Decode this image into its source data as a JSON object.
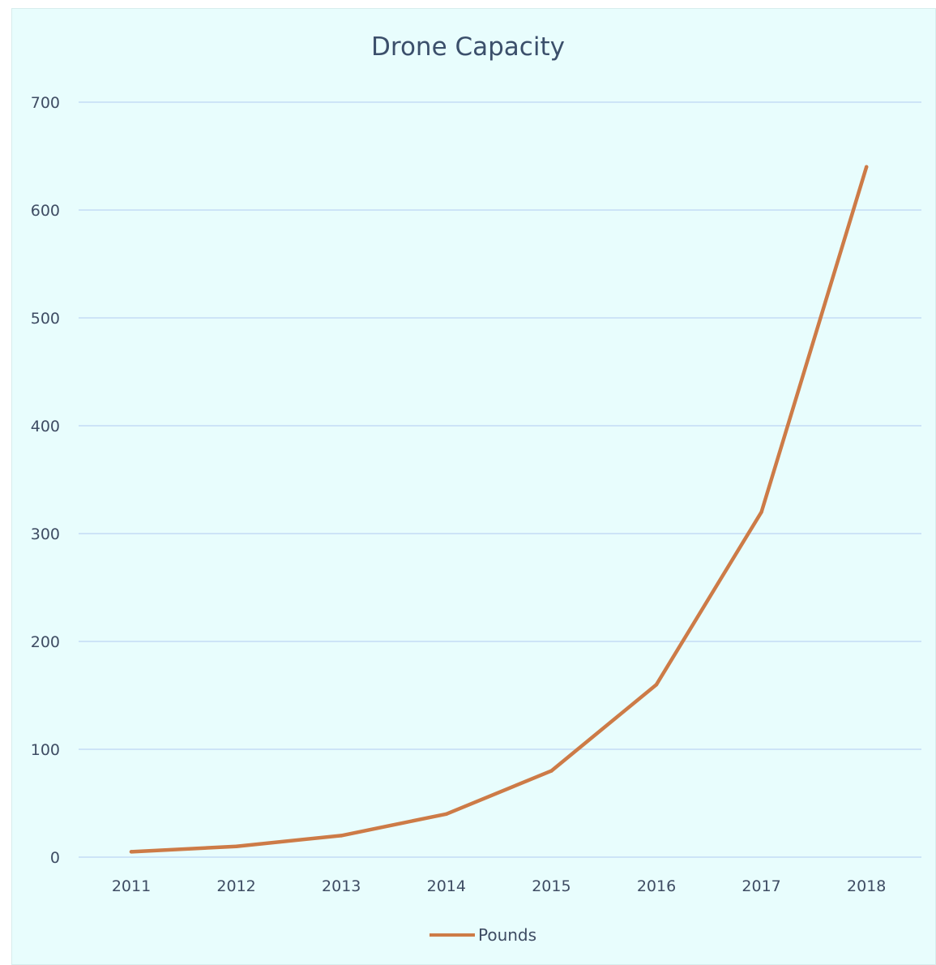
{
  "chart_data": {
    "type": "line",
    "title": "Drone Capacity",
    "xlabel": "",
    "ylabel": "",
    "categories": [
      "2011",
      "2012",
      "2013",
      "2014",
      "2015",
      "2016",
      "2017",
      "2018"
    ],
    "series": [
      {
        "name": "Pounds",
        "values": [
          5,
          10,
          20,
          40,
          80,
          160,
          320,
          640
        ],
        "color": "#cd7b47"
      }
    ],
    "ylim": [
      0,
      700
    ],
    "yticks": [
      0,
      100,
      200,
      300,
      400,
      500,
      600,
      700
    ],
    "grid": true,
    "legend_position": "bottom",
    "gridline_color": "#c4dcf5",
    "background_color": "#e8fdfd"
  }
}
